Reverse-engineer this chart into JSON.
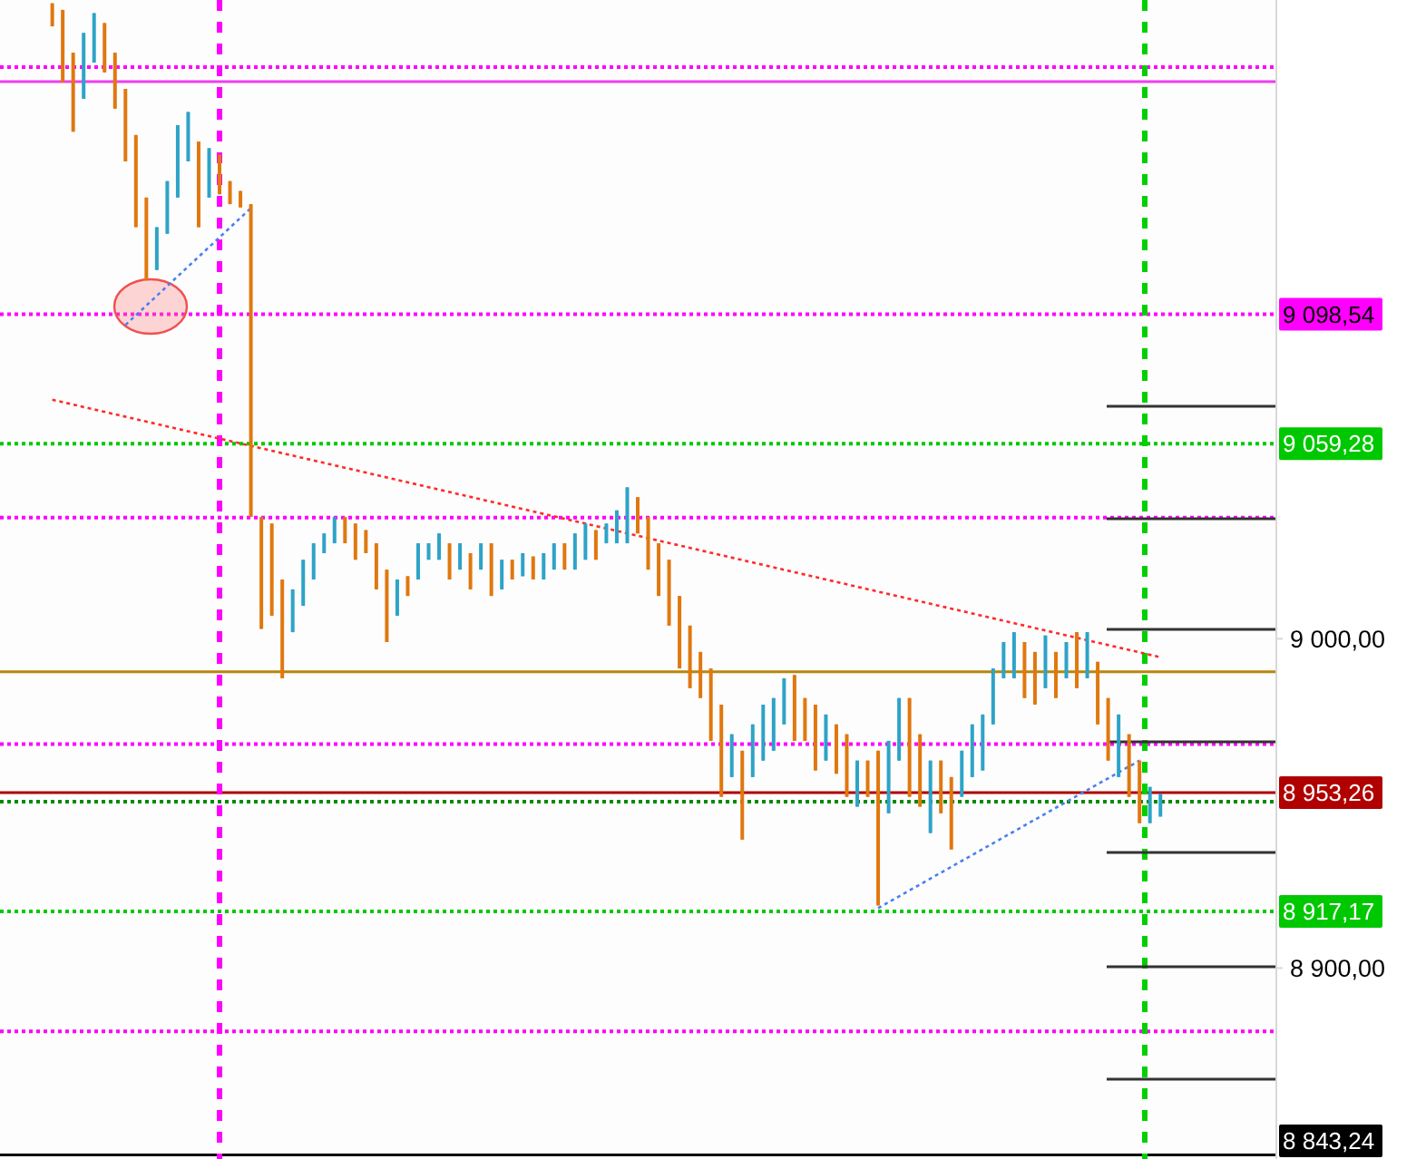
{
  "chart_data": {
    "type": "candlestick",
    "categories": [
      null,
      null,
      null,
      null,
      null,
      null,
      null,
      null,
      null,
      null,
      null,
      null,
      null,
      null,
      null,
      null,
      null,
      null,
      null,
      null,
      null,
      null,
      null,
      null,
      null,
      null,
      null,
      null,
      null,
      null,
      null,
      null,
      null,
      null,
      null,
      null,
      null,
      null,
      null,
      null,
      null,
      null,
      null,
      null,
      null,
      null,
      null,
      null,
      null,
      null,
      null,
      null,
      null,
      null,
      null,
      null,
      null,
      null,
      null,
      null,
      null,
      null,
      null,
      null,
      null,
      null,
      null,
      null,
      null,
      null,
      null,
      null,
      null,
      null,
      null,
      null,
      null,
      null,
      null,
      null,
      null,
      null,
      null,
      null,
      null,
      null,
      null,
      null,
      null,
      null,
      null,
      null,
      null,
      null,
      null,
      null,
      null,
      null,
      null,
      null,
      null,
      null,
      null,
      null,
      null,
      null,
      null
    ],
    "ohlc": [
      [
        9193,
        9193,
        9186,
        9186
      ],
      [
        9191,
        9191,
        9169,
        9169
      ],
      [
        9178,
        9178,
        9154,
        9154
      ],
      [
        9164,
        9184,
        9164,
        9184
      ],
      [
        9175,
        9190,
        9175,
        9190
      ],
      [
        9187,
        9187,
        9172,
        9172
      ],
      [
        9178,
        9178,
        9161,
        9161
      ],
      [
        9167,
        9167,
        9145,
        9145
      ],
      [
        9153,
        9153,
        9125,
        9125
      ],
      [
        9134,
        9134,
        9109,
        9109
      ],
      [
        9112,
        9125,
        9112,
        9125
      ],
      [
        9123,
        9139,
        9123,
        9139
      ],
      [
        9134,
        9156,
        9134,
        9156
      ],
      [
        9145,
        9160,
        9145,
        9160
      ],
      [
        9151,
        9151,
        9125,
        9125
      ],
      [
        9134,
        9149,
        9134,
        9149
      ],
      [
        9147,
        9147,
        9135,
        9135
      ],
      [
        9139,
        9139,
        9132,
        9132
      ],
      [
        9136,
        9136,
        9131,
        9131
      ],
      [
        9132,
        9132,
        9037,
        9037
      ],
      [
        9037,
        9037,
        9003,
        9003
      ],
      [
        9035,
        9035,
        9007,
        9007
      ],
      [
        9018,
        9018,
        8988,
        8988
      ],
      [
        9002,
        9015,
        9002,
        9015
      ],
      [
        9010,
        9024,
        9010,
        9024
      ],
      [
        9018,
        9029,
        9018,
        9029
      ],
      [
        9026,
        9032,
        9026,
        9032
      ],
      [
        9029,
        9037,
        9029,
        9037
      ],
      [
        9037,
        9037,
        9029,
        9029
      ],
      [
        9035,
        9035,
        9024,
        9024
      ],
      [
        9033,
        9033,
        9026,
        9026
      ],
      [
        9029,
        9029,
        9015,
        9015
      ],
      [
        9021,
        9021,
        8999,
        8999
      ],
      [
        9007,
        9018,
        9007,
        9018
      ],
      [
        9019,
        9019,
        9013,
        9013
      ],
      [
        9018,
        9029,
        9018,
        9029
      ],
      [
        9024,
        9029,
        9024,
        9029
      ],
      [
        9024,
        9032,
        9024,
        9032
      ],
      [
        9029,
        9029,
        9018,
        9018
      ],
      [
        9021,
        9029,
        9021,
        9029
      ],
      [
        9026,
        9026,
        9015,
        9015
      ],
      [
        9021,
        9029,
        9021,
        9029
      ],
      [
        9029,
        9029,
        9013,
        9013
      ],
      [
        9015,
        9024,
        9015,
        9024
      ],
      [
        9024,
        9024,
        9018,
        9018
      ],
      [
        9019,
        9026,
        9019,
        9026
      ],
      [
        9025,
        9025,
        9018,
        9018
      ],
      [
        9018,
        9026,
        9018,
        9026
      ],
      [
        9021,
        9029,
        9021,
        9029
      ],
      [
        9029,
        9029,
        9021,
        9021
      ],
      [
        9021,
        9032,
        9021,
        9032
      ],
      [
        9024,
        9035,
        9024,
        9035
      ],
      [
        9033,
        9033,
        9024,
        9024
      ],
      [
        9029,
        9035,
        9029,
        9035
      ],
      [
        9029,
        9039,
        9029,
        9039
      ],
      [
        9029,
        9046,
        9029,
        9046
      ],
      [
        9043,
        9043,
        9032,
        9032
      ],
      [
        9037,
        9037,
        9021,
        9021
      ],
      [
        9029,
        9029,
        9013,
        9013
      ],
      [
        9024,
        9024,
        9004,
        9004
      ],
      [
        9013,
        9013,
        8991,
        8991
      ],
      [
        9004,
        9004,
        8985,
        8985
      ],
      [
        8996,
        8996,
        8982,
        8982
      ],
      [
        8991,
        8991,
        8969,
        8969
      ],
      [
        8980,
        8980,
        8952,
        8952
      ],
      [
        8958,
        8971,
        8958,
        8971
      ],
      [
        8966,
        8966,
        8939,
        8939
      ],
      [
        8958,
        8974,
        8958,
        8974
      ],
      [
        8963,
        8980,
        8963,
        8980
      ],
      [
        8966,
        8982,
        8966,
        8982
      ],
      [
        8974,
        8988,
        8974,
        8988
      ],
      [
        8989,
        8989,
        8969,
        8969
      ],
      [
        8982,
        8982,
        8969,
        8969
      ],
      [
        8980,
        8980,
        8960,
        8960
      ],
      [
        8963,
        8977,
        8963,
        8977
      ],
      [
        8974,
        8974,
        8959,
        8959
      ],
      [
        8971,
        8971,
        8952,
        8952
      ],
      [
        8949,
        8963,
        8949,
        8963
      ],
      [
        8963,
        8963,
        8952,
        8952
      ],
      [
        8966,
        8966,
        8919,
        8919
      ],
      [
        8947,
        8969,
        8947,
        8969
      ],
      [
        8963,
        8982,
        8963,
        8982
      ],
      [
        8982,
        8982,
        8952,
        8952
      ],
      [
        8971,
        8971,
        8949,
        8949
      ],
      [
        8941,
        8963,
        8941,
        8963
      ],
      [
        8963,
        8963,
        8947,
        8947
      ],
      [
        8958,
        8958,
        8936,
        8936
      ],
      [
        8952,
        8966,
        8952,
        8966
      ],
      [
        8958,
        8974,
        8958,
        8974
      ],
      [
        8960,
        8977,
        8960,
        8977
      ],
      [
        8974,
        8991,
        8974,
        8991
      ],
      [
        8988,
        8999,
        8988,
        8999
      ],
      [
        8988,
        9002,
        8988,
        9002
      ],
      [
        8999,
        8999,
        8982,
        8982
      ],
      [
        8996,
        8996,
        8980,
        8980
      ],
      [
        8985,
        9001,
        8985,
        9001
      ],
      [
        8996,
        8996,
        8982,
        8982
      ],
      [
        8988,
        8999,
        8988,
        8999
      ],
      [
        9002,
        9002,
        8985,
        8985
      ],
      [
        8988,
        9002,
        8988,
        9002
      ],
      [
        8993,
        8993,
        8974,
        8974
      ],
      [
        8982,
        8982,
        8963,
        8963
      ],
      [
        8958,
        8977,
        8958,
        8977
      ],
      [
        8971,
        8971,
        8952,
        8952
      ],
      [
        8963,
        8963,
        8944,
        8944
      ],
      [
        8944,
        8955,
        8944,
        8955
      ],
      [
        8946,
        8953,
        8946,
        8953
      ]
    ],
    "colors": [
      "#e0780f",
      "#e0780f",
      "#e0780f",
      "#2ea3c8",
      "#2ea3c8",
      "#e0780f",
      "#e0780f",
      "#e0780f",
      "#e0780f",
      "#e0780f",
      "#2ea3c8",
      "#2ea3c8",
      "#2ea3c8",
      "#2ea3c8",
      "#e0780f",
      "#2ea3c8",
      "#e0780f",
      "#e0780f",
      "#e0780f",
      "#e0780f",
      "#e0780f",
      "#e0780f",
      "#e0780f",
      "#2ea3c8",
      "#2ea3c8",
      "#2ea3c8",
      "#2ea3c8",
      "#2ea3c8",
      "#e0780f",
      "#e0780f",
      "#e0780f",
      "#e0780f",
      "#e0780f",
      "#2ea3c8",
      "#e0780f",
      "#2ea3c8",
      "#2ea3c8",
      "#2ea3c8",
      "#e0780f",
      "#2ea3c8",
      "#e0780f",
      "#2ea3c8",
      "#e0780f",
      "#2ea3c8",
      "#e0780f",
      "#2ea3c8",
      "#e0780f",
      "#2ea3c8",
      "#2ea3c8",
      "#e0780f",
      "#2ea3c8",
      "#2ea3c8",
      "#e0780f",
      "#2ea3c8",
      "#2ea3c8",
      "#2ea3c8",
      "#e0780f",
      "#e0780f",
      "#e0780f",
      "#e0780f",
      "#e0780f",
      "#e0780f",
      "#e0780f",
      "#e0780f",
      "#e0780f",
      "#2ea3c8",
      "#e0780f",
      "#2ea3c8",
      "#2ea3c8",
      "#2ea3c8",
      "#2ea3c8",
      "#e0780f",
      "#e0780f",
      "#e0780f",
      "#2ea3c8",
      "#e0780f",
      "#e0780f",
      "#2ea3c8",
      "#e0780f",
      "#e0780f",
      "#2ea3c8",
      "#2ea3c8",
      "#e0780f",
      "#e0780f",
      "#2ea3c8",
      "#e0780f",
      "#e0780f",
      "#2ea3c8",
      "#2ea3c8",
      "#2ea3c8",
      "#2ea3c8",
      "#2ea3c8",
      "#2ea3c8",
      "#e0780f",
      "#e0780f",
      "#2ea3c8",
      "#e0780f",
      "#2ea3c8",
      "#e0780f",
      "#2ea3c8",
      "#e0780f",
      "#e0780f",
      "#2ea3c8",
      "#e0780f",
      "#e0780f",
      "#2ea3c8",
      "#2ea3c8"
    ],
    "series": [
      {
        "type": "line",
        "values": [
          9072.6,
          null,
          null,
          null,
          null,
          null,
          null,
          null,
          null,
          null,
          null,
          null,
          null,
          null,
          null,
          null,
          null,
          null,
          null,
          null,
          null,
          null,
          null,
          null,
          null,
          null,
          null,
          null,
          null,
          null,
          null,
          null,
          null,
          null,
          null,
          null,
          null,
          null,
          null,
          null,
          null,
          null,
          null,
          null,
          null,
          null,
          null,
          null,
          null,
          null,
          null,
          null,
          null,
          null,
          null,
          null,
          null,
          null,
          null,
          null,
          null,
          null,
          null,
          null,
          null,
          null,
          null,
          null,
          null,
          null,
          null,
          null,
          null,
          null,
          null,
          null,
          null,
          null,
          null,
          null,
          null,
          null,
          null,
          null,
          null,
          null,
          null,
          null,
          null,
          null,
          null,
          null,
          null,
          null,
          null,
          null,
          null,
          null,
          null,
          null,
          null,
          null,
          null,
          null,
          null,
          null,
          8994.4
        ],
        "color": "#ff2a2a",
        "line_style": "dotted"
      },
      {
        "type": "line",
        "values": [
          null,
          null,
          null,
          null,
          null,
          null,
          null,
          9095.3,
          null,
          null,
          null,
          null,
          null,
          null,
          null,
          null,
          null,
          null,
          null,
          9130.8,
          null,
          null,
          null,
          null,
          null,
          null,
          null,
          null,
          null,
          null,
          null,
          null,
          null,
          null,
          null,
          null,
          null,
          null,
          null,
          null,
          null,
          null,
          null,
          null,
          null,
          null,
          null,
          null,
          null,
          null,
          null,
          null,
          null,
          null,
          null,
          null,
          null,
          null,
          null,
          null,
          null,
          null,
          null,
          null,
          null,
          null,
          null,
          null,
          null,
          null,
          null,
          null,
          null,
          null,
          null,
          null,
          null,
          null,
          null,
          null,
          null,
          null,
          null,
          null,
          null,
          null,
          null,
          null,
          null,
          null,
          null,
          null,
          null,
          null,
          null,
          null,
          null,
          null,
          null,
          null,
          null,
          null,
          null,
          null,
          null,
          null,
          null
        ],
        "color": "#4a7ff0",
        "line_style": "dotted"
      },
      {
        "type": "line",
        "values": [
          null,
          null,
          null,
          null,
          null,
          null,
          null,
          null,
          null,
          null,
          null,
          null,
          null,
          null,
          null,
          null,
          null,
          null,
          null,
          null,
          null,
          null,
          null,
          null,
          null,
          null,
          null,
          null,
          null,
          null,
          null,
          null,
          null,
          null,
          null,
          null,
          null,
          null,
          null,
          null,
          null,
          null,
          null,
          null,
          null,
          null,
          null,
          null,
          null,
          null,
          null,
          null,
          null,
          null,
          null,
          null,
          null,
          null,
          null,
          null,
          null,
          null,
          null,
          null,
          null,
          null,
          null,
          null,
          null,
          null,
          null,
          null,
          null,
          null,
          null,
          null,
          null,
          null,
          null,
          8918.2,
          null,
          null,
          null,
          null,
          null,
          null,
          null,
          null,
          null,
          null,
          null,
          null,
          null,
          null,
          null,
          null,
          null,
          null,
          null,
          null,
          null,
          null,
          null,
          null,
          8963,
          null,
          null
        ],
        "color": "#4a7ff0",
        "line_style": "dotted"
      }
    ],
    "ylim": [
      8842,
      9194
    ],
    "yticks": [
      {
        "value": 9000,
        "label": "9 000,00"
      },
      {
        "value": 8900,
        "label": "8 900,00"
      }
    ],
    "ref_lines": [
      {
        "axis": "y",
        "value": 9173.6,
        "color": "#ff00ff",
        "line_style": "dotted"
      },
      {
        "axis": "y",
        "value": 9169.2,
        "color": "#f03cf0",
        "line_style": "solid"
      },
      {
        "axis": "y",
        "value": 9098.54,
        "label": "9 098,54",
        "color": "#ff00ff",
        "line_style": "dotted"
      },
      {
        "axis": "y",
        "value": 9059.28,
        "label": "9 059,28",
        "color": "#00c800",
        "line_style": "dotted"
      },
      {
        "axis": "y",
        "value": 9036.8,
        "color": "#ff00ff",
        "line_style": "dotted"
      },
      {
        "axis": "y",
        "value": 8990,
        "color": "#b8860b",
        "line_style": "solid"
      },
      {
        "axis": "y",
        "value": 8968,
        "color": "#ff00ff",
        "line_style": "dotted"
      },
      {
        "axis": "y",
        "value": 8953.26,
        "label": "8 953,26",
        "color": "#b00000",
        "line_style": "solid"
      },
      {
        "axis": "y",
        "value": 8950.5,
        "color": "#008a00",
        "line_style": "dotted"
      },
      {
        "axis": "y",
        "value": 8917.17,
        "label": "8 917,17",
        "color": "#00c800",
        "line_style": "dotted"
      },
      {
        "axis": "y",
        "value": 8880.8,
        "color": "#ff00ff",
        "line_style": "dotted"
      },
      {
        "axis": "y",
        "value": 8843.24,
        "label": "8 843,24",
        "color": "#000000",
        "line_style": "solid"
      }
    ],
    "tick_labels": "y",
    "grid": false
  }
}
